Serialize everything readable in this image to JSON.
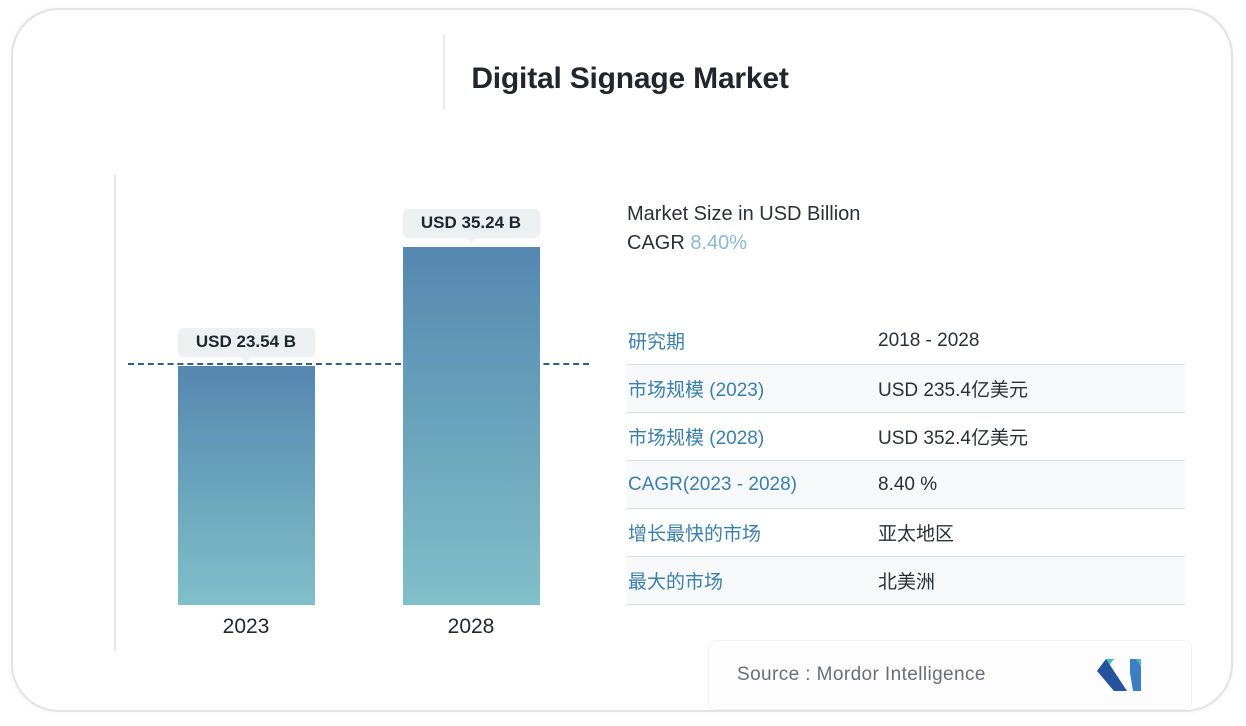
{
  "title": "Digital Signage Market",
  "chart_data": {
    "type": "bar",
    "categories": [
      "2023",
      "2028"
    ],
    "values": [
      23.54,
      35.24
    ],
    "value_labels": [
      "USD 23.54 B",
      "USD 35.24 B"
    ],
    "title": "Digital Signage Market",
    "ylabel": "Market Size in USD Billion",
    "ylim": [
      0,
      39
    ],
    "reference_line_value": 23.54,
    "legend": "none",
    "grid": "off",
    "bar_gradient_top": "#5587b1",
    "bar_gradient_bottom": "#80c0c8",
    "reference_line_color": "#2d628f"
  },
  "right_header": {
    "line1": "Market Size in USD Billion",
    "cagr_label": "CAGR",
    "cagr_value": "8.40%"
  },
  "table": {
    "rows": [
      {
        "label": "研究期",
        "value": "2018 - 2028"
      },
      {
        "label": "市场规模 (2023)",
        "value": "USD 235.4亿美元"
      },
      {
        "label": "市场规模 (2028)",
        "value": "USD 352.4亿美元"
      },
      {
        "label": "CAGR(2023 - 2028)",
        "value": "8.40 %"
      },
      {
        "label": "增长最快的市场",
        "value": "亚太地区"
      },
      {
        "label": "最大的市场",
        "value": "北美洲"
      }
    ]
  },
  "footer": {
    "source_label": "Source :",
    "source_value": "Mordor Intelligence",
    "logo": "mordor-intelligence-logo"
  },
  "colors": {
    "accent_label_blue": "#3a7fac",
    "cagr_highlight": "#8ab5d6",
    "logo_navy": "#24549e",
    "logo_blue": "#3d7ec0",
    "logo_teal": "#4ab9c3"
  }
}
